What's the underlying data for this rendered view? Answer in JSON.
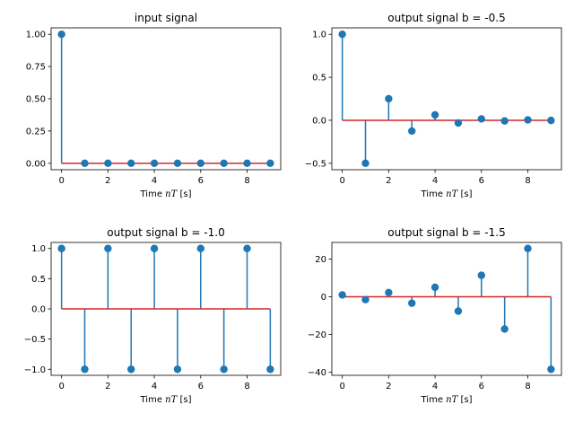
{
  "chart_data": [
    {
      "type": "stem",
      "title": "input signal",
      "xlabel": "Time $nT$ [s]",
      "xlabel_parts": [
        "Time ",
        "nT",
        " [s]"
      ],
      "x": [
        0,
        1,
        2,
        3,
        4,
        5,
        6,
        7,
        8,
        9
      ],
      "values": [
        1,
        0,
        0,
        0,
        0,
        0,
        0,
        0,
        0,
        0
      ],
      "xlim": [
        -0.45,
        9.45
      ],
      "ylim": [
        -0.05,
        1.05
      ],
      "xticks": [
        0,
        2,
        4,
        6,
        8
      ],
      "yticks": [
        0,
        0.25,
        0.5,
        0.75,
        1.0
      ],
      "ytick_labels": [
        "0.00",
        "0.25",
        "0.50",
        "0.75",
        "1.00"
      ]
    },
    {
      "type": "stem",
      "title": "output signal b = -0.5",
      "xlabel": "Time $nT$ [s]",
      "xlabel_parts": [
        "Time ",
        "nT",
        " [s]"
      ],
      "x": [
        0,
        1,
        2,
        3,
        4,
        5,
        6,
        7,
        8,
        9
      ],
      "values": [
        1,
        -0.5,
        0.25,
        -0.125,
        0.0625,
        -0.03125,
        0.015625,
        -0.0078125,
        0.00390625,
        -0.001953125
      ],
      "xlim": [
        -0.45,
        9.45
      ],
      "ylim": [
        -0.575,
        1.075
      ],
      "xticks": [
        0,
        2,
        4,
        6,
        8
      ],
      "yticks": [
        -0.5,
        0,
        0.5,
        1.0
      ],
      "ytick_labels": [
        "−0.5",
        "0.0",
        "0.5",
        "1.0"
      ]
    },
    {
      "type": "stem",
      "title": "output signal b = -1.0",
      "xlabel": "Time $nT$ [s]",
      "xlabel_parts": [
        "Time ",
        "nT",
        " [s]"
      ],
      "x": [
        0,
        1,
        2,
        3,
        4,
        5,
        6,
        7,
        8,
        9
      ],
      "values": [
        1,
        -1,
        1,
        -1,
        1,
        -1,
        1,
        -1,
        1,
        -1
      ],
      "xlim": [
        -0.45,
        9.45
      ],
      "ylim": [
        -1.1,
        1.1
      ],
      "xticks": [
        0,
        2,
        4,
        6,
        8
      ],
      "yticks": [
        -1.0,
        -0.5,
        0,
        0.5,
        1.0
      ],
      "ytick_labels": [
        "−1.0",
        "−0.5",
        "0.0",
        "0.5",
        "1.0"
      ]
    },
    {
      "type": "stem",
      "title": "output signal b = -1.5",
      "xlabel": "Time $nT$ [s]",
      "xlabel_parts": [
        "Time ",
        "nT",
        " [s]"
      ],
      "x": [
        0,
        1,
        2,
        3,
        4,
        5,
        6,
        7,
        8,
        9
      ],
      "values": [
        1,
        -1.5,
        2.25,
        -3.375,
        5.0625,
        -7.59375,
        11.390625,
        -17.0859375,
        25.62890625,
        -38.443359375
      ],
      "xlim": [
        -0.45,
        9.45
      ],
      "ylim": [
        -41.65,
        28.84
      ],
      "xticks": [
        0,
        2,
        4,
        6,
        8
      ],
      "yticks": [
        -40,
        -20,
        0,
        20
      ],
      "ytick_labels": [
        "−40",
        "−20",
        "0",
        "20"
      ]
    }
  ],
  "colors": {
    "stem": "#1f77b4",
    "marker": "#1f77b4",
    "baseline": "#d62728",
    "axes": "#000000"
  }
}
